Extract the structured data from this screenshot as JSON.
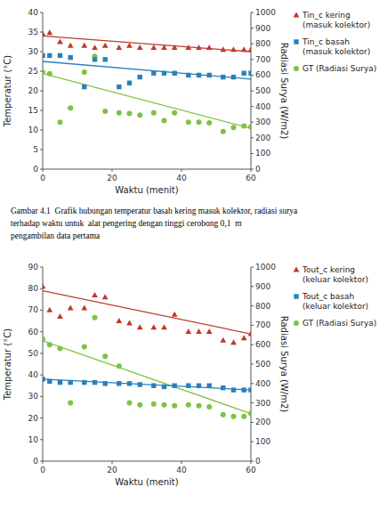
{
  "chart_data": [
    {
      "type": "scatter",
      "xlabel": "Waktu (menit)",
      "ylabel": "Temperatur (°C)",
      "y2label": "Radiasi Surya (W/m2)",
      "xlim": [
        0,
        60
      ],
      "ylim": [
        0,
        40
      ],
      "y2lim": [
        0,
        1000
      ],
      "xticks": [
        0,
        20,
        40,
        60
      ],
      "yticks": [
        0,
        5,
        10,
        15,
        20,
        25,
        30,
        35,
        40
      ],
      "y2ticks": [
        0,
        100,
        200,
        300,
        400,
        500,
        600,
        700,
        800,
        900,
        1000
      ],
      "series": [
        {
          "name": "Tin_c kering\n(masuk kolektor)",
          "type": "scatter",
          "color": "#c0392b",
          "marker": "triangle",
          "x": [
            0,
            2,
            5,
            8,
            12,
            15,
            18,
            22,
            25,
            28,
            32,
            35,
            38,
            42,
            45,
            48,
            52,
            55,
            58,
            60
          ],
          "values": [
            34.5,
            34.8,
            32.5,
            31.5,
            31.5,
            31.0,
            31.5,
            31.0,
            31.5,
            31.0,
            31.0,
            31.0,
            31.0,
            31.0,
            31.0,
            31.0,
            30.5,
            30.5,
            30.5,
            30.5
          ]
        },
        {
          "type": "line",
          "color": "#c0392b",
          "x": [
            0,
            60
          ],
          "values": [
            34.0,
            30.0
          ]
        },
        {
          "name": "Tin_c basah\n(masuk kolektor)",
          "type": "scatter",
          "color": "#2980b9",
          "marker": "square",
          "x": [
            0,
            2,
            5,
            8,
            12,
            15,
            18,
            22,
            25,
            28,
            32,
            35,
            38,
            42,
            45,
            48,
            52,
            55,
            58,
            60
          ],
          "values": [
            29.0,
            29.0,
            29.0,
            28.5,
            21.0,
            28.0,
            28.0,
            21.0,
            22.0,
            23.5,
            24.5,
            24.5,
            24.5,
            24.0,
            24.0,
            24.0,
            23.5,
            23.5,
            24.5,
            24.5
          ]
        },
        {
          "type": "line",
          "color": "#2980b9",
          "x": [
            0,
            60
          ],
          "values": [
            27.5,
            23.0
          ]
        },
        {
          "name": "GT (Radiasi Surya)",
          "type": "scatter",
          "color": "#7dc242",
          "marker": "circle",
          "axis": "y2",
          "x": [
            0,
            2,
            5,
            8,
            12,
            15,
            18,
            22,
            25,
            28,
            32,
            35,
            38,
            42,
            45,
            48,
            52,
            55,
            58,
            60
          ],
          "values": [
            620,
            610,
            300,
            390,
            620,
            720,
            370,
            360,
            355,
            345,
            360,
            310,
            360,
            300,
            300,
            295,
            240,
            265,
            275,
            270
          ]
        },
        {
          "type": "line",
          "color": "#7dc242",
          "axis": "y2",
          "x": [
            0,
            60
          ],
          "values": [
            610,
            260
          ]
        }
      ]
    },
    {
      "type": "scatter",
      "xlabel": "Waktu (menit)",
      "ylabel": "Temperatur (°C)",
      "y2label": "Radiasi Surya (W/m2)",
      "xlim": [
        0,
        60
      ],
      "ylim": [
        0,
        90
      ],
      "y2lim": [
        0,
        1000
      ],
      "xticks": [
        0,
        20,
        40,
        60
      ],
      "yticks": [
        0,
        10,
        20,
        30,
        40,
        50,
        60,
        70,
        80,
        90
      ],
      "y2ticks": [
        0,
        100,
        200,
        300,
        400,
        500,
        600,
        700,
        800,
        900,
        1000
      ],
      "series": [
        {
          "name": "Tout_c kering\n(keluar kolektor)",
          "type": "scatter",
          "color": "#c0392b",
          "marker": "triangle",
          "x": [
            0,
            2,
            5,
            8,
            12,
            15,
            18,
            22,
            25,
            28,
            32,
            35,
            38,
            42,
            45,
            48,
            52,
            55,
            58,
            60
          ],
          "values": [
            81.0,
            70.0,
            67.0,
            71.0,
            71.0,
            77.0,
            76.0,
            65.0,
            64.0,
            62.0,
            62.0,
            62.0,
            68.0,
            60.0,
            60.0,
            60.0,
            56.0,
            55.0,
            57.0,
            59.0
          ]
        },
        {
          "type": "line",
          "color": "#c0392b",
          "x": [
            0,
            60
          ],
          "values": [
            79.0,
            59.0
          ]
        },
        {
          "name": "Tout_c basah\n(keluar kolektor)",
          "type": "scatter",
          "color": "#2980b9",
          "marker": "square",
          "x": [
            0,
            2,
            5,
            8,
            12,
            15,
            18,
            22,
            25,
            28,
            32,
            35,
            38,
            42,
            45,
            48,
            52,
            55,
            58,
            60
          ],
          "values": [
            38.0,
            37.0,
            36.5,
            36.5,
            36.5,
            36.5,
            36.0,
            36.0,
            36.0,
            35.5,
            35.0,
            34.5,
            35.0,
            35.0,
            35.0,
            35.0,
            34.0,
            33.0,
            33.0,
            33.0
          ]
        },
        {
          "type": "line",
          "color": "#2980b9",
          "x": [
            0,
            60
          ],
          "values": [
            38.0,
            33.0
          ]
        },
        {
          "name": "GT (Radiasi Surya)",
          "type": "scatter",
          "color": "#7dc242",
          "marker": "circle",
          "axis": "y2",
          "x": [
            0,
            2,
            5,
            8,
            12,
            15,
            18,
            22,
            25,
            28,
            32,
            35,
            38,
            42,
            45,
            48,
            52,
            55,
            58,
            60
          ],
          "values": [
            630,
            600,
            580,
            300,
            590,
            740,
            540,
            490,
            300,
            290,
            295,
            290,
            285,
            290,
            285,
            280,
            240,
            230,
            230,
            245
          ]
        },
        {
          "type": "line",
          "color": "#7dc242",
          "axis": "y2",
          "x": [
            0,
            60
          ],
          "values": [
            620,
            245
          ]
        }
      ]
    }
  ],
  "caption": [
    "Gambar 4.1  Grafik hubungan temperatur basah kering masuk kolektor, radiasi surya",
    "terhadap waktu untuk  alat pengering dengan tinggi cerobong 0,1  m",
    "pengambilan data pertama"
  ]
}
